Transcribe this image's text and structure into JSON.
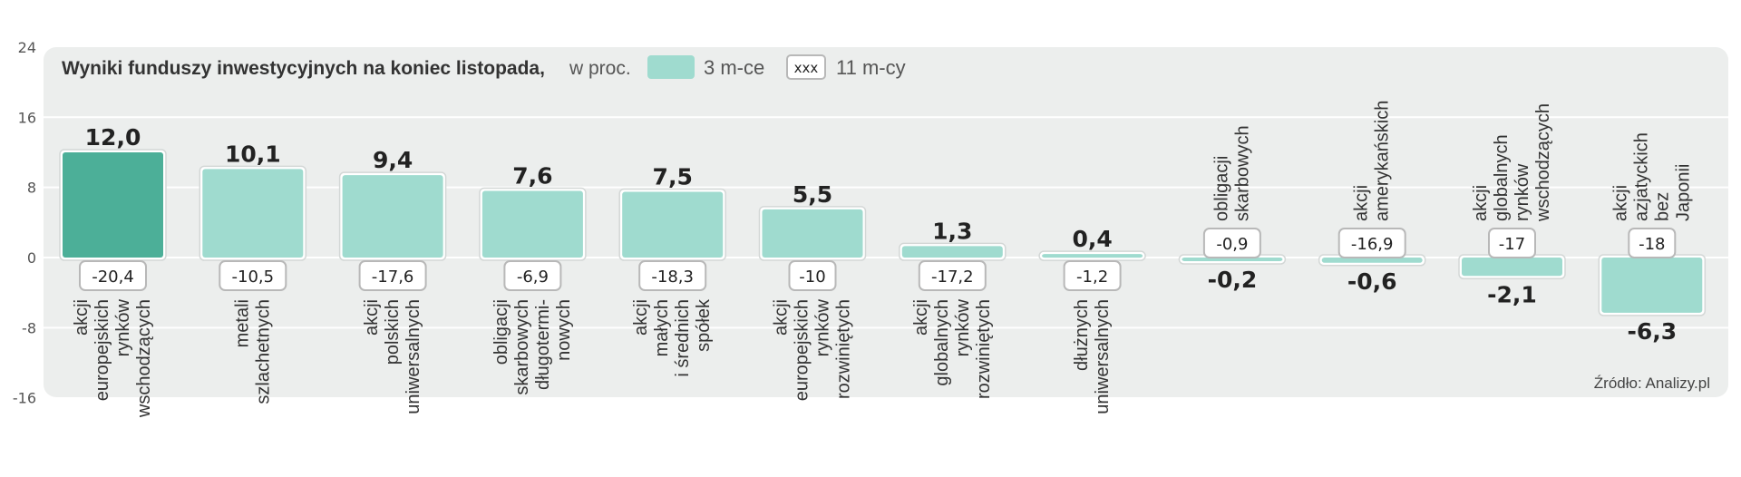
{
  "chart_data": {
    "type": "bar",
    "title": "Wyniki funduszy inwestycyjnych na koniec listopada,",
    "unit": "w proc.",
    "legend": [
      {
        "key": "3m",
        "label": "3 m-ce",
        "swatch": "bar",
        "color": "#9fdbcf"
      },
      {
        "key": "11m",
        "label": "11 m-cy",
        "swatch": "box",
        "sample": "xxx"
      }
    ],
    "ylim": [
      -16,
      24
    ],
    "yticks": [
      "24",
      "16",
      "8",
      "0",
      "-8",
      "-16"
    ],
    "grid": true,
    "source": "Źródło: Analizy.pl",
    "colors": {
      "bar": "#9fdbcf",
      "bar_highlight": "#4caf98",
      "panel": "#eceeed",
      "grid": "#ffffff",
      "box_border": "#b8b8b8"
    },
    "categories": [
      {
        "lines": [
          "akcji",
          "europejskich",
          "rynków",
          "wschodzących"
        ],
        "value_3m": 12.0,
        "label_3m": "12,0",
        "value_11m": -20.4,
        "label_11m": "-20,4",
        "highlight": true
      },
      {
        "lines": [
          "metali",
          "szlachetnych"
        ],
        "value_3m": 10.1,
        "label_3m": "10,1",
        "value_11m": -10.5,
        "label_11m": "-10,5"
      },
      {
        "lines": [
          "akcji",
          "polskich",
          "uniwersalnych"
        ],
        "value_3m": 9.4,
        "label_3m": "9,4",
        "value_11m": -17.6,
        "label_11m": "-17,6"
      },
      {
        "lines": [
          "obligacji",
          "skarbowych",
          "długotermi-",
          "nowych"
        ],
        "value_3m": 7.6,
        "label_3m": "7,6",
        "value_11m": -6.9,
        "label_11m": "-6,9"
      },
      {
        "lines": [
          "akcji",
          "małych",
          "i średnich",
          "spółek"
        ],
        "value_3m": 7.5,
        "label_3m": "7,5",
        "value_11m": -18.3,
        "label_11m": "-18,3"
      },
      {
        "lines": [
          "akcji",
          "europejskich",
          "rynków",
          "rozwiniętych"
        ],
        "value_3m": 5.5,
        "label_3m": "5,5",
        "value_11m": -10,
        "label_11m": "-10"
      },
      {
        "lines": [
          "akcji",
          "globalnych",
          "rynków",
          "rozwiniętych"
        ],
        "value_3m": 1.3,
        "label_3m": "1,3",
        "value_11m": -17.2,
        "label_11m": "-17,2"
      },
      {
        "lines": [
          "dłużnych",
          "uniwersalnych"
        ],
        "value_3m": 0.4,
        "label_3m": "0,4",
        "value_11m": -1.2,
        "label_11m": "-1,2"
      },
      {
        "lines": [
          "obligacji",
          "skarbowych"
        ],
        "value_3m": -0.2,
        "label_3m": "-0,2",
        "value_11m": -0.9,
        "label_11m": "-0,9"
      },
      {
        "lines": [
          "akcji",
          "amerykańskich"
        ],
        "value_3m": -0.6,
        "label_3m": "-0,6",
        "value_11m": -16.9,
        "label_11m": "-16,9"
      },
      {
        "lines": [
          "akcji",
          "globalnych",
          "rynków",
          "wschodzących"
        ],
        "value_3m": -2.1,
        "label_3m": "-2,1",
        "value_11m": -17,
        "label_11m": "-17"
      },
      {
        "lines": [
          "akcji",
          "azjatyckich",
          "bez",
          "Japonii"
        ],
        "value_3m": -6.3,
        "label_3m": "-6,3",
        "value_11m": -18,
        "label_11m": "-18"
      }
    ]
  }
}
